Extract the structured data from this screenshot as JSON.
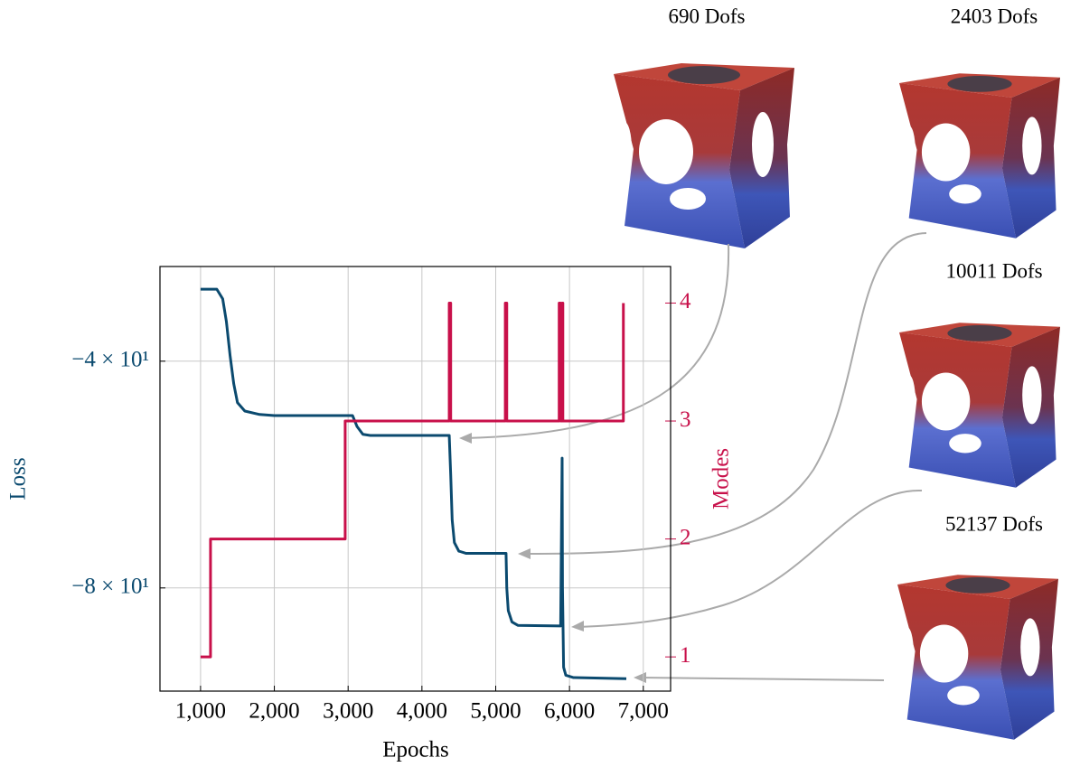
{
  "chart_data": {
    "type": "line",
    "xlabel": "Epochs",
    "ylabel": "Loss",
    "y2label": "Modes",
    "xlim": [
      450,
      7370
    ],
    "xticks": [
      {
        "value": 1000,
        "label": "1,000"
      },
      {
        "value": 2000,
        "label": "2,000"
      },
      {
        "value": 3000,
        "label": "3,000"
      },
      {
        "value": 4000,
        "label": "4,000"
      },
      {
        "value": 5000,
        "label": "5,000"
      },
      {
        "value": 6000,
        "label": "6,000"
      },
      {
        "value": 7000,
        "label": "7,000"
      }
    ],
    "ylim": [
      -98.2,
      -23.3
    ],
    "yticks": [
      {
        "value": -40,
        "label": "−4 × 10¹"
      },
      {
        "value": -80,
        "label": "−8 × 10¹"
      }
    ],
    "y2lim": [
      0.71,
      4.31
    ],
    "y2ticks": [
      1,
      2,
      3,
      4
    ],
    "grid": true,
    "series": [
      {
        "name": "Loss",
        "color": "#0b4a6f",
        "x": [
          1000,
          1220,
          1300,
          1350,
          1400,
          1450,
          1500,
          1600,
          1800,
          2000,
          3000,
          3060,
          3120,
          3200,
          3300,
          4370,
          4390,
          4410,
          4440,
          4500,
          4600,
          5140,
          5150,
          5170,
          5220,
          5300,
          5880,
          5900,
          5905,
          5920,
          5950,
          6050,
          6770
        ],
        "values": [
          -27.3,
          -27.3,
          -29,
          -33,
          -39,
          -44,
          -47.3,
          -48.8,
          -49.4,
          -49.6,
          -49.6,
          -49.6,
          -51.5,
          -52.9,
          -53.1,
          -53.1,
          -60,
          -68,
          -72,
          -73.5,
          -73.9,
          -73.9,
          -80,
          -84,
          -86,
          -86.6,
          -86.7,
          -57.1,
          -80,
          -94,
          -95.4,
          -95.8,
          -96
        ]
      },
      {
        "name": "Modes",
        "color": "#c8104a",
        "axis": "y2",
        "x": [
          1000,
          1135,
          1135,
          2960,
          2960,
          4370,
          4370,
          4390,
          4390,
          5130,
          5130,
          5150,
          5150,
          5860,
          5860,
          5880,
          5880,
          5900,
          5900,
          5910,
          5910,
          6730,
          6730
        ],
        "values": [
          1,
          1,
          2,
          2,
          3,
          3,
          4,
          4,
          3,
          3,
          4,
          4,
          3,
          3,
          4,
          4,
          3,
          3,
          4,
          4,
          3,
          3,
          4
        ]
      }
    ],
    "annotations": [
      "690 Dofs",
      "2403 Dofs",
      "10011 Dofs",
      "52137 Dofs"
    ]
  }
}
